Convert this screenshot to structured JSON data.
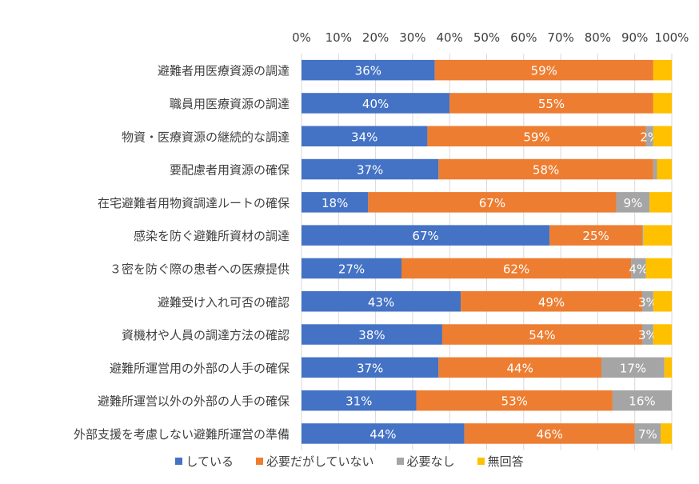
{
  "chart_data": {
    "type": "bar",
    "orientation": "horizontal",
    "stacked": true,
    "title": "",
    "xlabel": "",
    "ylabel": "",
    "xlim": [
      0,
      100
    ],
    "x_ticks": [
      "0%",
      "10%",
      "20%",
      "30%",
      "40%",
      "50%",
      "60%",
      "70%",
      "80%",
      "90%",
      "100%"
    ],
    "x_axis_position": "top",
    "grid": true,
    "legend_position": "bottom",
    "categories": [
      "避難者用医療資源の調達",
      "職員用医療資源の調達",
      "物資・医療資源の継続的な調達",
      "要配慮者用資源の確保",
      "在宅避難者用物資調達ルートの確保",
      "感染を防ぐ避難所資材の調達",
      "３密を防ぐ際の患者への医療提供",
      "避難受け入れ可否の確認",
      "資機材や人員の調達方法の確認",
      "避難所運営用の外部の人手の確保",
      "避難所運営以外の外部の人手の確保",
      "外部支援を考慮しない避難所運営の準備"
    ],
    "series": [
      {
        "name": "している",
        "color": "#4472C4",
        "values": [
          36,
          40,
          34,
          37,
          18,
          67,
          27,
          43,
          38,
          37,
          31,
          44
        ],
        "labels": [
          "36%",
          "40%",
          "34%",
          "37%",
          "18%",
          "67%",
          "27%",
          "43%",
          "38%",
          "37%",
          "31%",
          "44%"
        ]
      },
      {
        "name": "必要だがしていない",
        "color": "#ED7D31",
        "values": [
          59,
          55,
          59,
          58,
          67,
          25,
          62,
          49,
          54,
          44,
          53,
          46
        ],
        "labels": [
          "59%",
          "55%",
          "59%",
          "58%",
          "67%",
          "25%",
          "62%",
          "49%",
          "54%",
          "44%",
          "53%",
          "46%"
        ]
      },
      {
        "name": "必要なし",
        "color": "#A5A5A5",
        "values": [
          0,
          0,
          2,
          1,
          9,
          0.3,
          4,
          3,
          3,
          17,
          16,
          7
        ],
        "labels": [
          "",
          "",
          "2%",
          "",
          "9%",
          "",
          "4%",
          "3%",
          "3%",
          "17%",
          "16%",
          "7%"
        ]
      },
      {
        "name": "無回答",
        "color": "#FFC000",
        "values": [
          5,
          5,
          5,
          4,
          6,
          7.7,
          7,
          5,
          5,
          2,
          0,
          3
        ],
        "labels": [
          "",
          "",
          "",
          "",
          "",
          "",
          "",
          "",
          "",
          "",
          "",
          ""
        ]
      }
    ]
  }
}
